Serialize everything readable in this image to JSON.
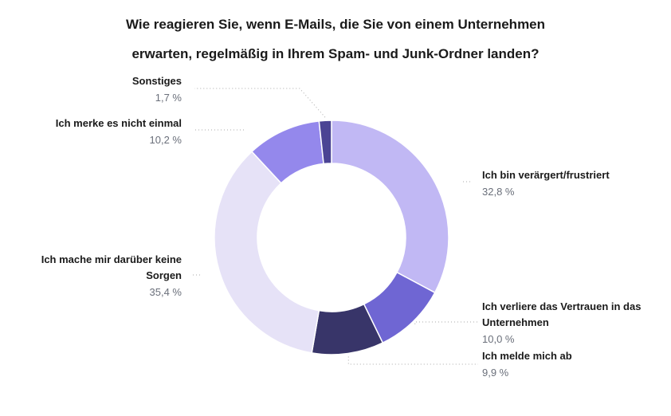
{
  "chart_data": {
    "type": "pie",
    "donut": true,
    "title_lines": [
      "Wie reagieren Sie, wenn E-Mails, die Sie von einem Unternehmen",
      "erwarten, regelmäßig in Ihrem Spam- und Junk-Ordner landen?"
    ],
    "slices": [
      {
        "label": "Ich bin verärgert/frustriert",
        "value": 32.8,
        "value_label": "32,8 %",
        "color": "#c1b8f4"
      },
      {
        "label": "Ich verliere das Vertrauen in das Unternehmen",
        "value": 10.0,
        "value_label": "10,0 %",
        "color": "#6f66d3"
      },
      {
        "label": "Ich melde mich ab",
        "value": 9.9,
        "value_label": "9,9 %",
        "color": "#383569"
      },
      {
        "label": "Ich mache mir darüber keine Sorgen",
        "value": 35.4,
        "value_label": "35,4 %",
        "color": "#e6e2f7"
      },
      {
        "label": "Ich merke es nicht einmal",
        "value": 10.2,
        "value_label": "10,2 %",
        "color": "#9488ec"
      },
      {
        "label": "Sonstiges",
        "value": 1.7,
        "value_label": "1,7 %",
        "color": "#4b4494"
      }
    ]
  }
}
